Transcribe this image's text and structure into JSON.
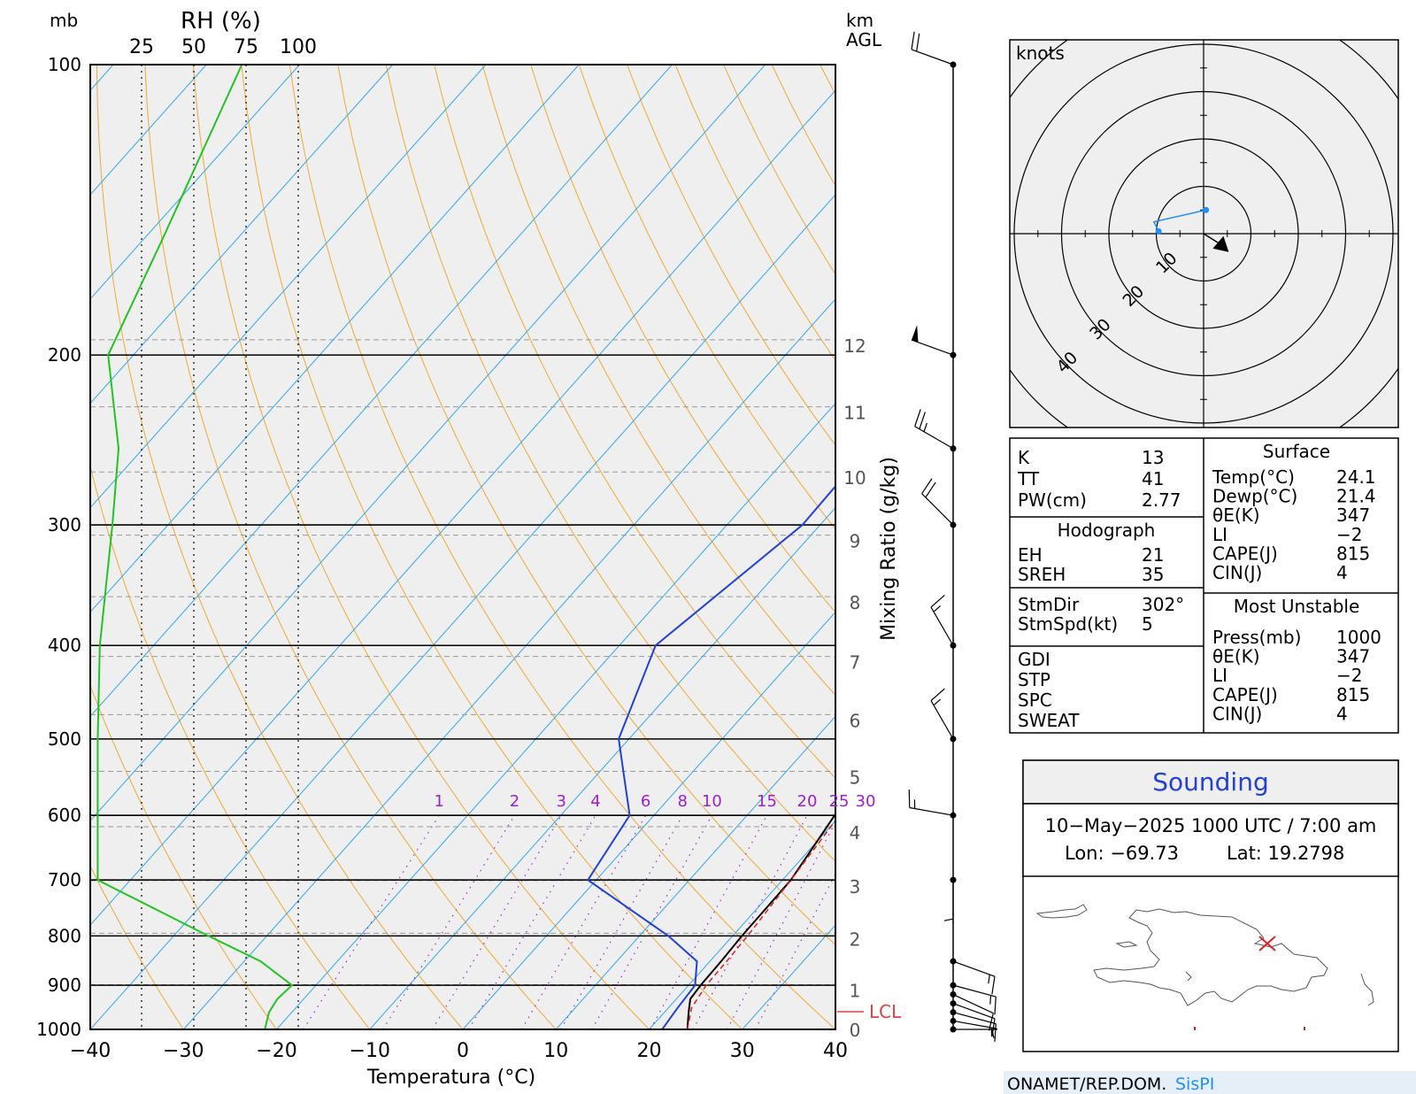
{
  "skewt": {
    "left_units": "mb",
    "rh_title": "RH  (%)",
    "rh_ticks": [
      "25",
      "50",
      "75",
      "100"
    ],
    "km_title": "km",
    "agl_title": "AGL",
    "mixing_ratio_axis_title": "Mixing Ratio (g/kg)",
    "mixing_ratio_labels": [
      "1",
      "2",
      "3",
      "4",
      "6",
      "8",
      "10",
      "15",
      "20",
      "25",
      "30"
    ],
    "lcl_label": "LCL",
    "xlabel": "Temperatura (°C)"
  },
  "hodograph": {
    "units_label": "knots",
    "ring_labels": [
      "10",
      "20",
      "30",
      "40"
    ]
  },
  "indices": {
    "left": [
      {
        "label": "K",
        "value": "13"
      },
      {
        "label": "TT",
        "value": "41"
      },
      {
        "label": "PW(cm)",
        "value": "2.77"
      }
    ],
    "hodograph_title": "Hodograph",
    "hodograph_rows": [
      {
        "label": "EH",
        "value": "21"
      },
      {
        "label": "SREH",
        "value": "35"
      }
    ],
    "storm_rows": [
      {
        "label": "StmDir",
        "value": "302°"
      },
      {
        "label": "StmSpd(kt)",
        "value": "5"
      }
    ],
    "severe_rows": [
      {
        "label": "GDI",
        "value": ""
      },
      {
        "label": "STP",
        "value": ""
      },
      {
        "label": "SPC",
        "value": ""
      },
      {
        "label": "SWEAT",
        "value": ""
      }
    ],
    "surface_title": "Surface",
    "surface_rows": [
      {
        "label": "Temp(°C)",
        "value": "24.1"
      },
      {
        "label": "Dewp(°C)",
        "value": "21.4"
      },
      {
        "label": "θE(K)",
        "value": "347"
      },
      {
        "label": "LI",
        "value": "−2"
      },
      {
        "label": "CAPE(J)",
        "value": "815"
      },
      {
        "label": "CIN(J)",
        "value": "4"
      }
    ],
    "mu_title": "Most Unstable",
    "mu_rows": [
      {
        "label": "Press(mb)",
        "value": "1000"
      },
      {
        "label": "θE(K)",
        "value": "347"
      },
      {
        "label": "LI",
        "value": "−2"
      },
      {
        "label": "CAPE(J)",
        "value": "815"
      },
      {
        "label": "CIN(J)",
        "value": "4"
      }
    ]
  },
  "info": {
    "title": "Sounding",
    "datetime": "10−May−2025 1000 UTC / 7:00 am",
    "lon": "Lon:  −69.73",
    "lat": "Lat: 19.2798"
  },
  "footer": {
    "org": "ONAMET/REP.DOM.",
    "brand": "SisPI"
  },
  "colors": {
    "temperature": "#000000",
    "dewpoint": "#2040e0",
    "rh": "#22c422",
    "parcel": "#e02020",
    "dry_adiabat": "#f0a830",
    "isotherm": "#30a8e8",
    "mixing_ratio": "#a020d0",
    "hodograph": "#1e90ff"
  },
  "chart_data": {
    "type": "line",
    "title": "",
    "xlabel": "Temperatura (°C)",
    "ylabel": "",
    "xlim": [
      -40,
      40
    ],
    "ylim": [
      1000,
      100
    ],
    "x_ticks": [
      -40,
      -30,
      -20,
      -10,
      0,
      10,
      20,
      30,
      40
    ],
    "pressure_ticks": [
      100,
      200,
      300,
      400,
      500,
      600,
      700,
      800,
      900,
      1000
    ],
    "height_km_ticks": [
      0,
      1,
      2,
      3,
      4,
      5,
      6,
      7,
      8,
      9,
      10,
      11,
      12
    ],
    "series": [
      {
        "pressure": [
          1000,
          960,
          930,
          900,
          850,
          800,
          700,
          600,
          500,
          400,
          300,
          250,
          200,
          150,
          100
        ],
        "values": [
          24.1,
          22.6,
          21.5,
          21.3,
          21.2,
          21.0,
          20.9,
          19.4,
          16.6,
          9.7,
          -0.2,
          -4.3,
          -7.7,
          -12.4,
          -15.2
        ]
      },
      {
        "pressure": [
          1000,
          950,
          900,
          850,
          800,
          700,
          600,
          500,
          400,
          300,
          250,
          200,
          150,
          100
        ],
        "values": [
          21.4,
          21.0,
          20.7,
          18.6,
          13.1,
          -0.9,
          -2.6,
          -11.1,
          -16.1,
          -11.9,
          -12.2,
          -15.1,
          -15.3,
          -8.4
        ]
      },
      {
        "pressure": [
          1000,
          950,
          900,
          850,
          800,
          700,
          600,
          500,
          400,
          300,
          250,
          200,
          150,
          100
        ],
        "values": [
          24.1,
          22.5,
          21.9,
          21.8,
          21.6,
          20.9,
          19.9,
          18.2,
          14.4,
          7.0,
          1.7,
          -3.7,
          -10.0,
          -16.0
        ]
      }
    ],
    "rh_percent": {
      "pressure": [
        1000,
        960,
        930,
        900,
        850,
        800,
        700,
        600,
        500,
        400,
        300,
        250,
        200,
        150,
        100
      ],
      "values": [
        84,
        86,
        90,
        97,
        82,
        57,
        4,
        4,
        4,
        5,
        11,
        14,
        9,
        36,
        73
      ]
    },
    "winds": {
      "pressure": [
        1000,
        980,
        960,
        940,
        920,
        900,
        850,
        700,
        600,
        500,
        400,
        300,
        250,
        200,
        100
      ],
      "direction_deg": [
        90,
        100,
        105,
        110,
        115,
        105,
        110,
        180,
        280,
        330,
        330,
        315,
        300,
        290,
        290
      ],
      "speed_kt": [
        5,
        5,
        10,
        10,
        10,
        15,
        15,
        5,
        15,
        15,
        15,
        20,
        25,
        50,
        20
      ]
    },
    "hodograph": {
      "u_kt": [
        -9.5,
        -10.5,
        0.5
      ],
      "v_kt": [
        0.5,
        2.5,
        5.0
      ],
      "storm_motion": {
        "direction_deg": 302,
        "speed_kt": 5
      },
      "ring_speeds_kt": [
        10,
        20,
        30,
        40
      ]
    }
  }
}
